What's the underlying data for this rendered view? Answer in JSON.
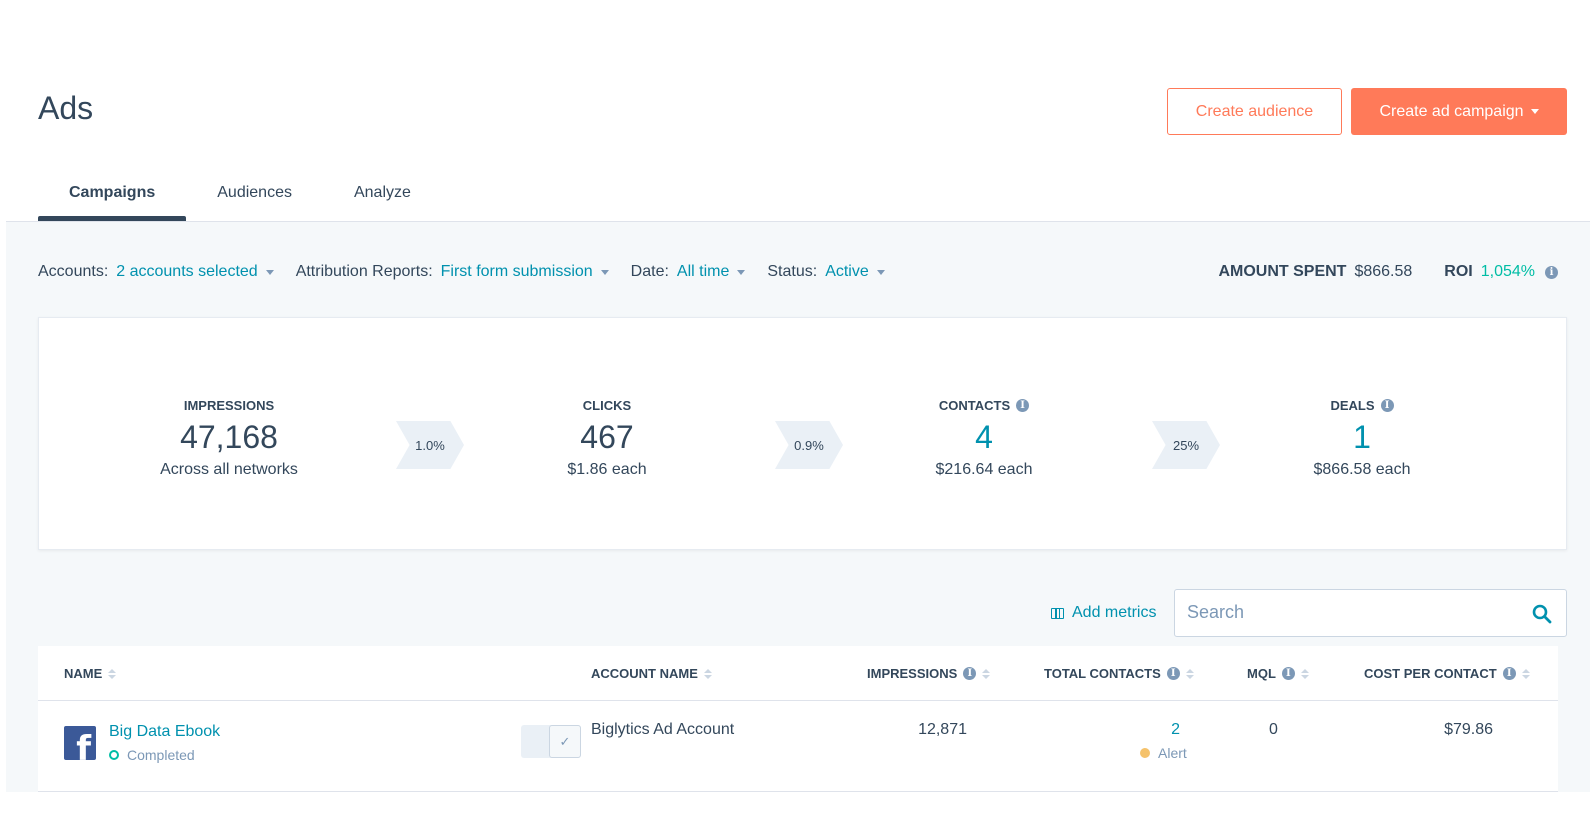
{
  "header": {
    "title": "Ads",
    "create_audience_label": "Create audience",
    "create_campaign_label": "Create ad campaign"
  },
  "tabs": [
    {
      "label": "Campaigns",
      "active": true
    },
    {
      "label": "Audiences",
      "active": false
    },
    {
      "label": "Analyze",
      "active": false
    }
  ],
  "filters": {
    "accounts": {
      "label": "Accounts:",
      "value": "2 accounts selected"
    },
    "attribution": {
      "label": "Attribution Reports:",
      "value": "First form submission"
    },
    "date": {
      "label": "Date:",
      "value": "All time"
    },
    "status": {
      "label": "Status:",
      "value": "Active"
    }
  },
  "summary": {
    "amount_spent_label": "AMOUNT SPENT",
    "amount_spent_value": "$866.58",
    "roi_label": "ROI",
    "roi_value": "1,054%"
  },
  "funnel": {
    "impressions": {
      "label": "IMPRESSIONS",
      "value": "47,168",
      "sub": "Across all networks"
    },
    "rate1": "1.0%",
    "clicks": {
      "label": "CLICKS",
      "value": "467",
      "sub": "$1.86 each"
    },
    "rate2": "0.9%",
    "contacts": {
      "label": "CONTACTS",
      "value": "4",
      "sub": "$216.64 each"
    },
    "rate3": "25%",
    "deals": {
      "label": "DEALS",
      "value": "1",
      "sub": "$866.58 each"
    }
  },
  "toolbar": {
    "add_metrics_label": "Add metrics",
    "search_placeholder": "Search"
  },
  "table": {
    "columns": {
      "name": "NAME",
      "account": "ACCOUNT NAME",
      "impressions": "IMPRESSIONS",
      "total_contacts": "TOTAL CONTACTS",
      "mql": "MQL",
      "cost": "COST PER CONTACT"
    },
    "rows": [
      {
        "network_icon": "facebook-icon",
        "name": "Big Data Ebook",
        "status": "Completed",
        "account": "Biglytics Ad Account",
        "impressions": "12,871",
        "total_contacts": "2",
        "contacts_flag": "Alert",
        "mql": "0",
        "cost": "$79.86"
      }
    ]
  },
  "colors": {
    "accent_orange": "#ff7a59",
    "link_teal": "#0091ae",
    "success_teal": "#00bda5",
    "text_dark": "#33475b",
    "alert_yellow": "#f5c26b",
    "facebook_blue": "#3b5998"
  }
}
